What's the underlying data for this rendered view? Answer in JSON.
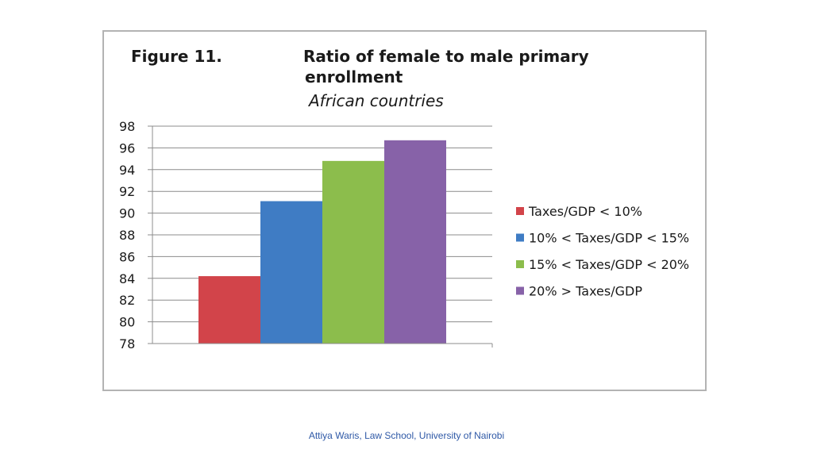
{
  "figure_label": "Figure 11.",
  "footer": "Attiya Waris, Law School, University of Nairobi",
  "chart_data": {
    "type": "bar",
    "title": "Ratio of female to male primary enrollment",
    "title_lines": [
      "Ratio of female to male primary",
      "enrollment"
    ],
    "subtitle": "African countries",
    "xlabel": "",
    "ylabel": "",
    "ylim": [
      78,
      98
    ],
    "yticks": [
      78,
      80,
      82,
      84,
      86,
      88,
      90,
      92,
      94,
      96,
      98
    ],
    "grid": true,
    "legend_position": "right",
    "series": [
      {
        "name": "Taxes/GDP < 10%",
        "value": 84.2,
        "color": "#d2444a"
      },
      {
        "name": "10% < Taxes/GDP < 15%",
        "value": 91.1,
        "color": "#3f7cc4"
      },
      {
        "name": "15% < Taxes/GDP < 20%",
        "value": 94.8,
        "color": "#8cbd4c"
      },
      {
        "name": "20% > Taxes/GDP",
        "value": 96.7,
        "color": "#8762a8"
      }
    ]
  }
}
